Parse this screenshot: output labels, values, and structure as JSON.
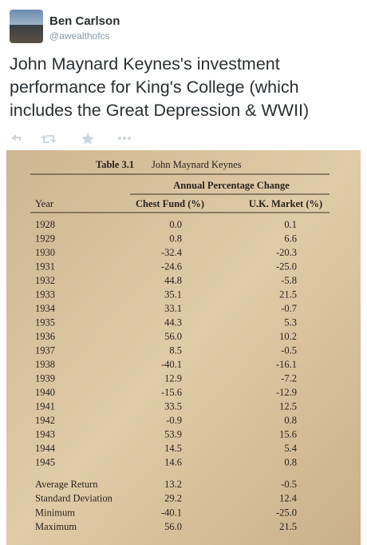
{
  "tweet": {
    "name": "Ben Carlson",
    "handle": "@awealthofcs",
    "text": "John Maynard Keynes's investment performance for King's College (which includes the Great Depression & WWII)"
  },
  "table": {
    "title": "Table 3.1",
    "author": "John Maynard Keynes",
    "group_header": "Annual Percentage Change",
    "columns": [
      "Year",
      "Chest Fund (%)",
      "U.K. Market (%)"
    ],
    "rows": [
      [
        "1928",
        "0.0",
        "0.1"
      ],
      [
        "1929",
        "0.8",
        "6.6"
      ],
      [
        "1930",
        "-32.4",
        "-20.3"
      ],
      [
        "1931",
        "-24.6",
        "-25.0"
      ],
      [
        "1932",
        "44.8",
        "-5.8"
      ],
      [
        "1933",
        "35.1",
        "21.5"
      ],
      [
        "1934",
        "33.1",
        "-0.7"
      ],
      [
        "1935",
        "44.3",
        "5.3"
      ],
      [
        "1936",
        "56.0",
        "10.2"
      ],
      [
        "1937",
        "8.5",
        "-0.5"
      ],
      [
        "1938",
        "-40.1",
        "-16.1"
      ],
      [
        "1939",
        "12.9",
        "-7.2"
      ],
      [
        "1940",
        "-15.6",
        "-12.9"
      ],
      [
        "1941",
        "33.5",
        "12.5"
      ],
      [
        "1942",
        "-0.9",
        "0.8"
      ],
      [
        "1943",
        "53.9",
        "15.6"
      ],
      [
        "1944",
        "14.5",
        "5.4"
      ],
      [
        "1945",
        "14.6",
        "0.8"
      ]
    ],
    "summary": [
      [
        "Average Return",
        "13.2",
        "-0.5"
      ],
      [
        "Standard Deviation",
        "29.2",
        "12.4"
      ],
      [
        "Minimum",
        "-40.1",
        "-25.0"
      ],
      [
        "Maximum",
        "56.0",
        "21.5"
      ]
    ]
  }
}
